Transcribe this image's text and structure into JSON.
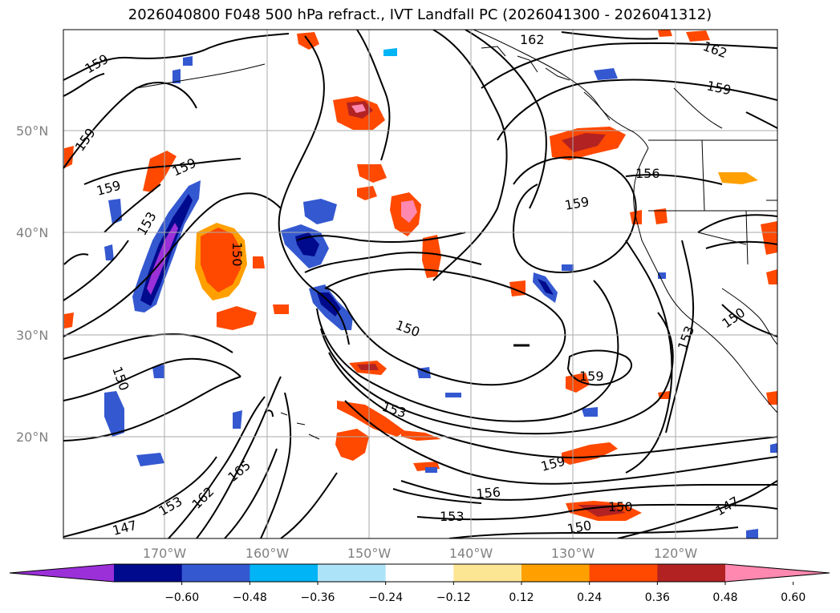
{
  "title": "2026040800 F048 500 hPa refract., IVT Landfall PC (2026041300 - 2026041312)",
  "lat_labels": [
    "50°N",
    "40°N",
    "30°N",
    "20°N"
  ],
  "lon_labels": [
    "170°W",
    "160°W",
    "150°W",
    "140°W",
    "130°W",
    "120°W"
  ],
  "contour_labels": [
    "162",
    "162",
    "159",
    "159",
    "159",
    "159",
    "159",
    "156",
    "159",
    "150",
    "153",
    "150",
    "150",
    "153",
    "165",
    "162",
    "153",
    "147",
    "159",
    "156",
    "153",
    "150",
    "150",
    "147",
    "159",
    "153",
    "150"
  ],
  "colorbar": {
    "ticks": [
      "−0.60",
      "−0.48",
      "−0.36",
      "−0.24",
      "−0.12",
      "0.12",
      "0.24",
      "0.36",
      "0.48",
      "0.60"
    ],
    "colors": [
      "#9b30d8",
      "#000a8c",
      "#3458d0",
      "#00b4f5",
      "#ade3f8",
      "#ffffff",
      "#fce694",
      "#ffa000",
      "#ff4800",
      "#b22222",
      "#ff88b0"
    ]
  },
  "colors": {
    "contour": "#000000",
    "grid": "#aaaaaa",
    "coast": "#000000"
  }
}
